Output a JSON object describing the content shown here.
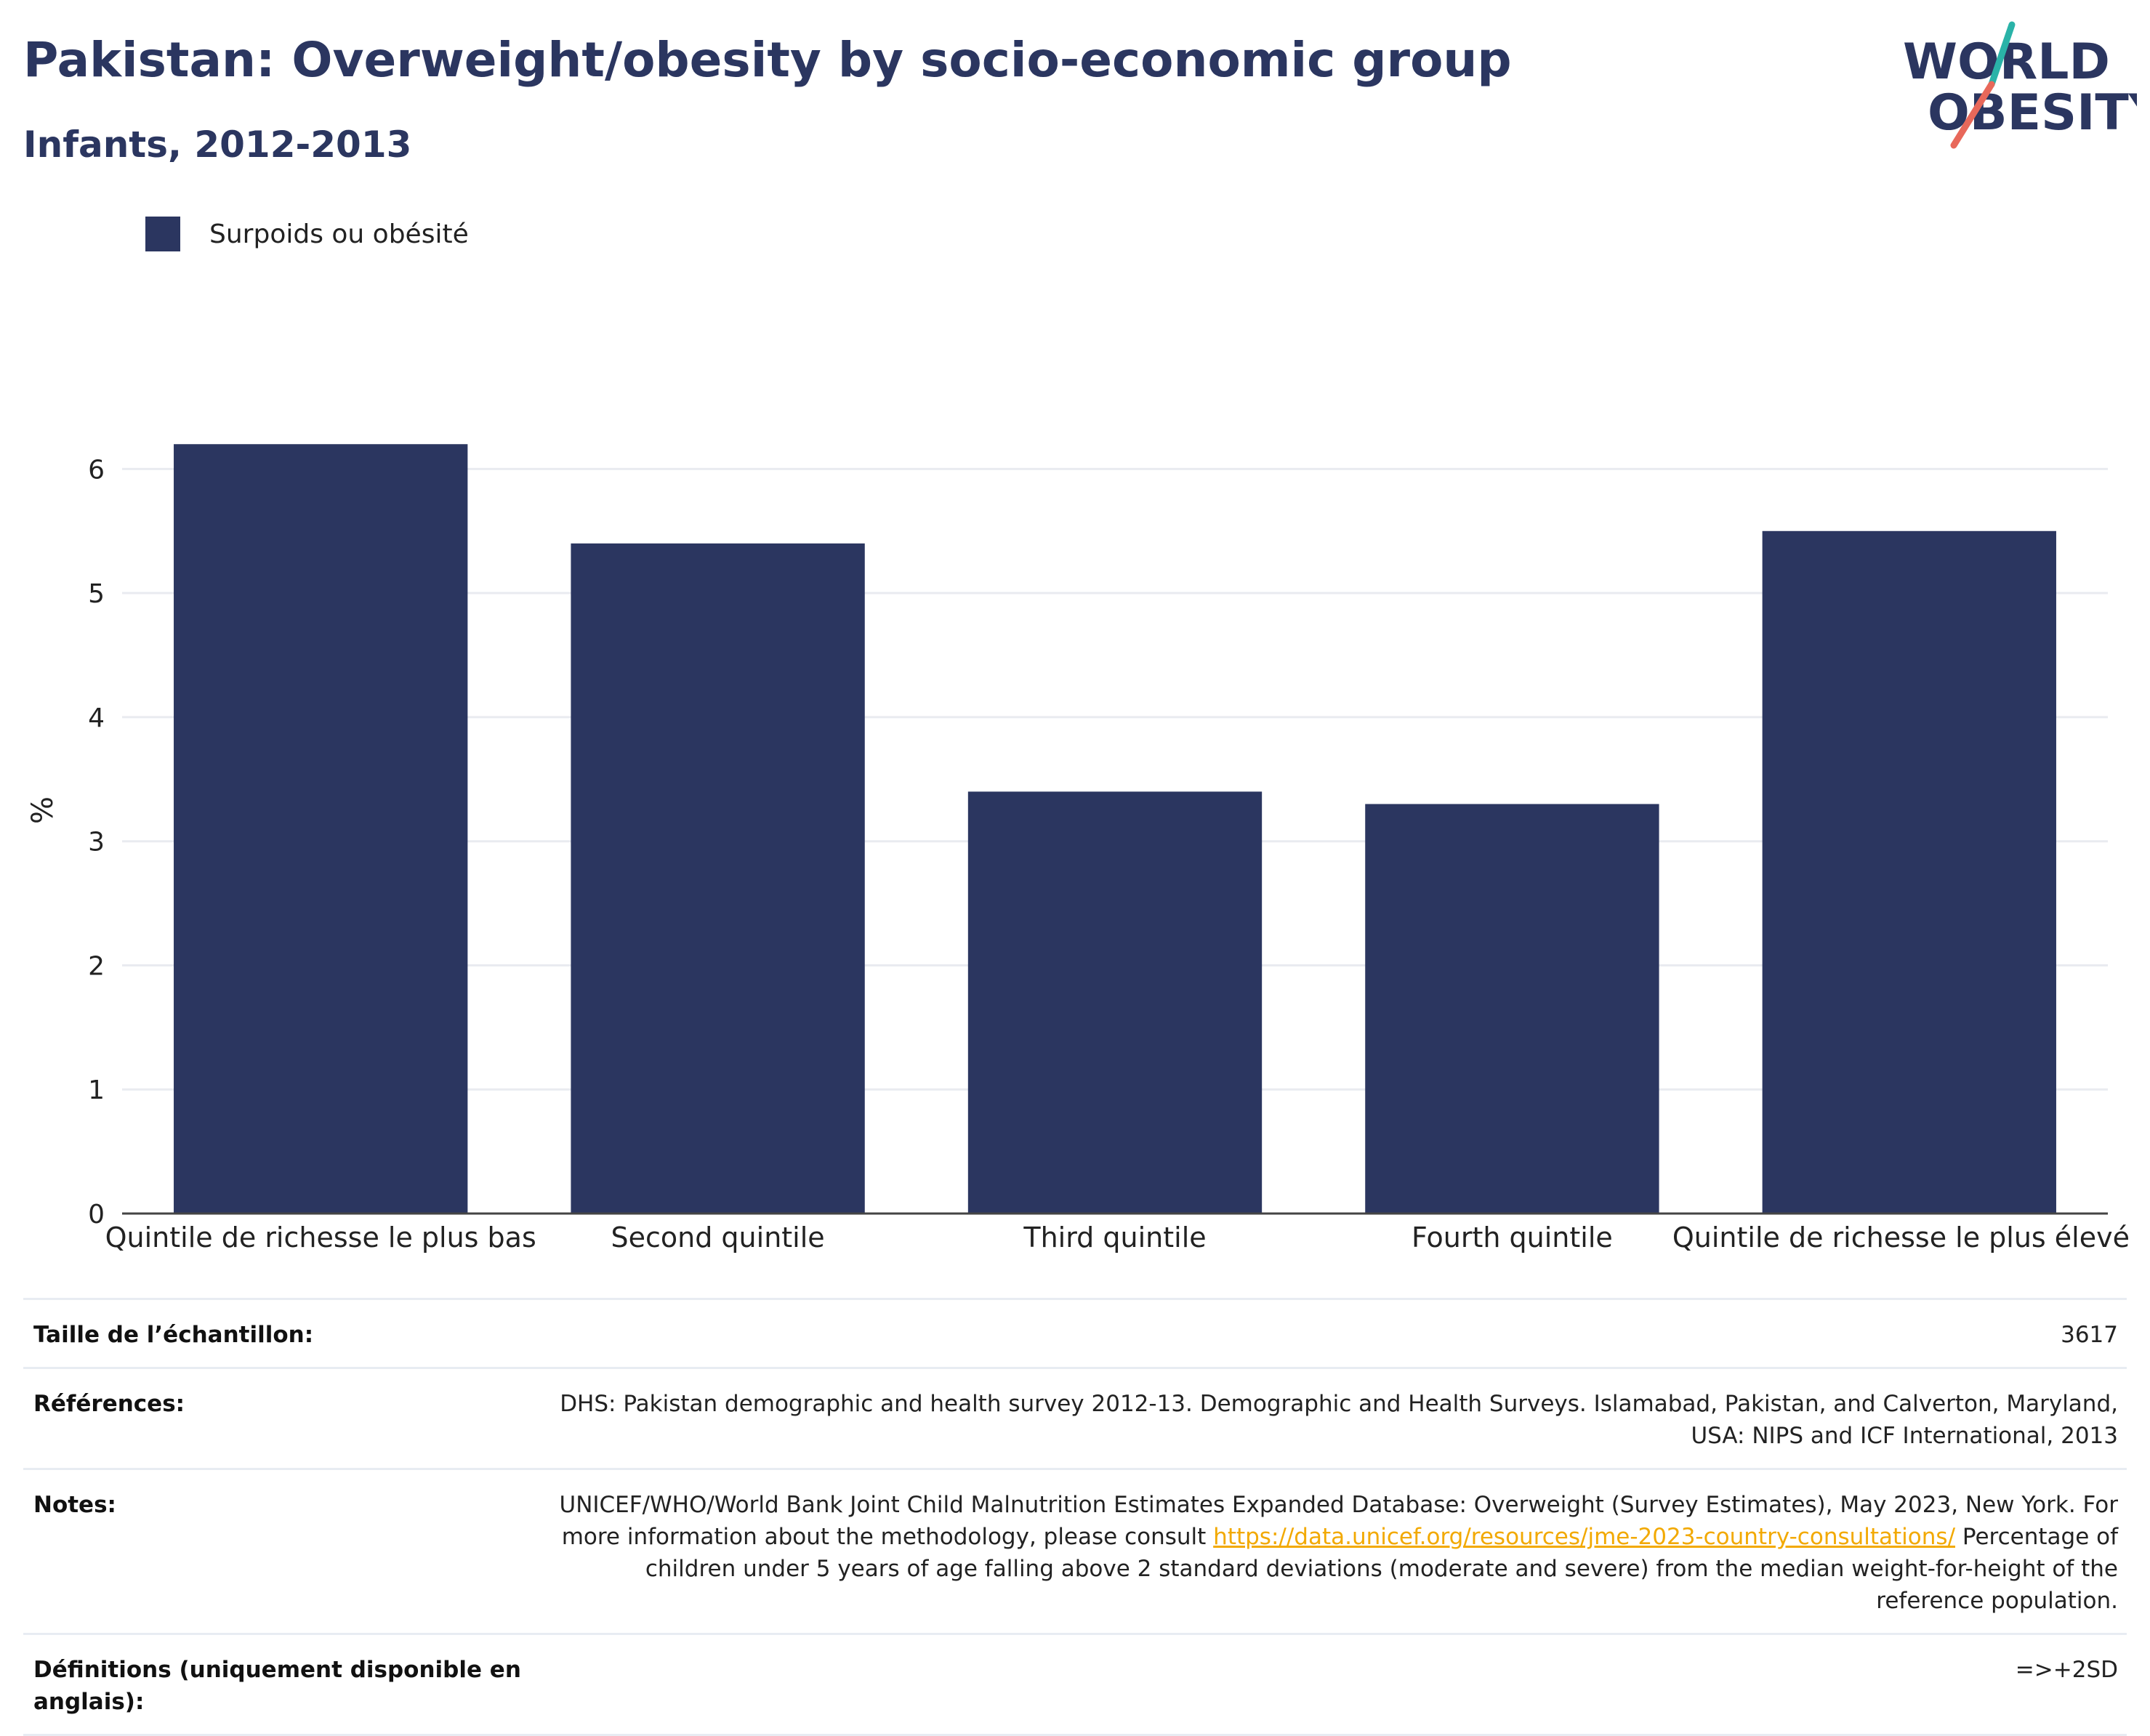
{
  "header": {
    "title": "Pakistan: Overweight/obesity by socio-economic group",
    "subtitle": "Infants, 2012-2013"
  },
  "logo": {
    "line1": "WORLD",
    "line2": "OBESITY"
  },
  "colors": {
    "bar": "#2b3660",
    "title": "#2b3660",
    "link": "#f2a900",
    "logo_teal": "#2ab3a8",
    "logo_coral": "#e8685a"
  },
  "chart_data": {
    "type": "bar",
    "categories": [
      "Quintile de richesse le plus bas",
      "Second quintile",
      "Third quintile",
      "Fourth quintile",
      "Quintile de richesse le plus élevé"
    ],
    "series": [
      {
        "name": "Surpoids ou obésité",
        "values": [
          6.2,
          5.4,
          3.4,
          3.3,
          5.5
        ]
      }
    ],
    "ylabel": "%",
    "ylim": [
      0,
      6.5
    ],
    "yticks": [
      0,
      1,
      2,
      3,
      4,
      5,
      6
    ],
    "grid": true,
    "legend": "top-left"
  },
  "meta": {
    "sample_label": "Taille de l’échantillon:",
    "sample_value": "3617",
    "refs_label": "Références:",
    "refs_value": "DHS: Pakistan demographic and health survey 2012-13. Demographic and Health Surveys. Islamabad, Pakistan, and Calverton, Maryland, USA: NIPS and ICF International, 2013",
    "notes_label": "Notes:",
    "notes_before": "UNICEF/WHO/World Bank Joint Child Malnutrition Estimates Expanded Database: Overweight (Survey Estimates), May 2023, New York. For more information about the methodology, please consult ",
    "notes_link": "https://data.unicef.org/resources/jme-2023-country-consultations/",
    "notes_after": " Percentage of children under 5 years of age falling above 2 standard deviations (moderate and severe) from the median weight-for-height of the reference population.",
    "defs_label": "Définitions (uniquement disponible en anglais):",
    "defs_value": "=>+2SD"
  }
}
